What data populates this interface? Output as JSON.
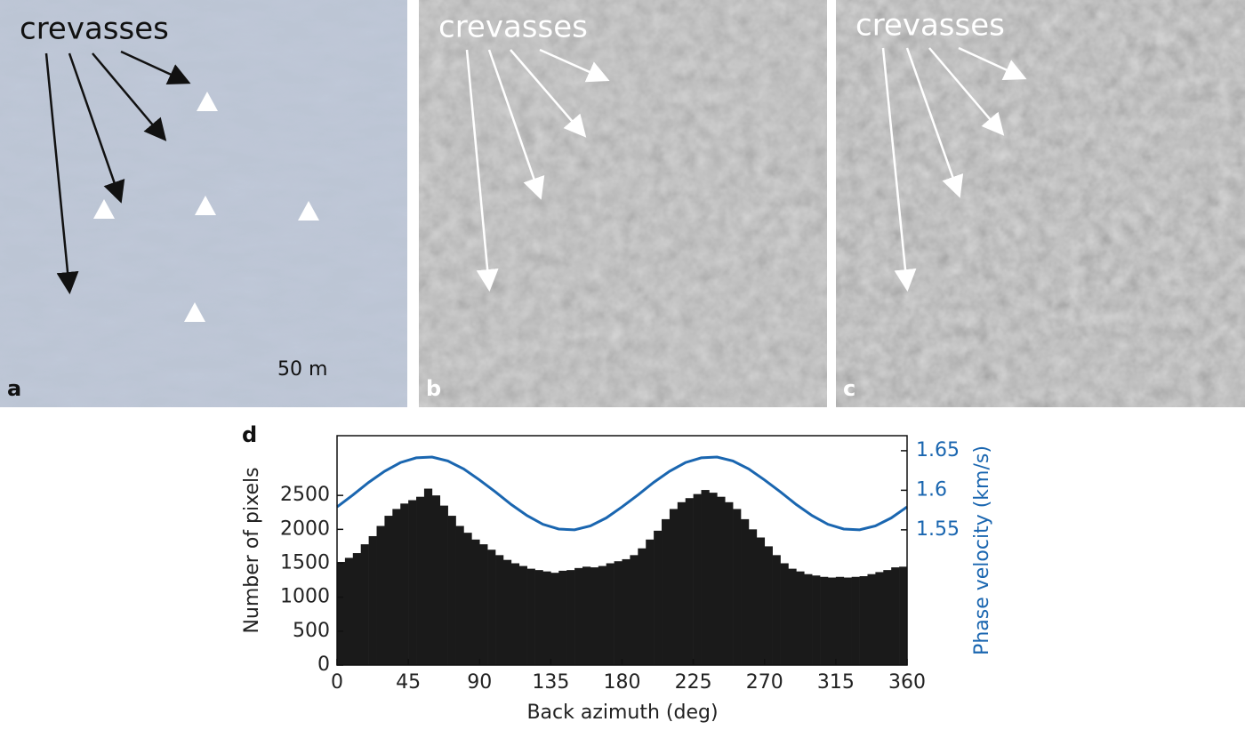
{
  "panels": [
    {
      "label": "a",
      "annotation": "crevasses",
      "scale": "50 m"
    },
    {
      "label": "b",
      "annotation": "crevasses"
    },
    {
      "label": "c",
      "annotation": "crevasses"
    }
  ],
  "chart_data": {
    "type": "histogram",
    "panel_label": "d",
    "xlabel": "Back azimuth (deg)",
    "ylabel": "Number of pixels",
    "y2label": "Phase velocity (km/s)",
    "color": "#1a1a1a",
    "bins": [
      0,
      5,
      10,
      15,
      20,
      25,
      30,
      35,
      40,
      45,
      50,
      55,
      60,
      65,
      70,
      75,
      80,
      85,
      90,
      95,
      100,
      105,
      110,
      115,
      120,
      125,
      130,
      135,
      140,
      145,
      150,
      155,
      160,
      165,
      170,
      175,
      180,
      185,
      190,
      195,
      200,
      205,
      210,
      215,
      220,
      225,
      230,
      235,
      240,
      245,
      250,
      255,
      260,
      265,
      270,
      275,
      280,
      285,
      290,
      295,
      300,
      305,
      310,
      315,
      320,
      325,
      330,
      335,
      340,
      345,
      350,
      355,
      360
    ],
    "values": [
      1520,
      1580,
      1650,
      1780,
      1900,
      2050,
      2200,
      2300,
      2380,
      2430,
      2480,
      2600,
      2500,
      2350,
      2200,
      2050,
      1950,
      1850,
      1780,
      1700,
      1620,
      1550,
      1500,
      1460,
      1420,
      1400,
      1380,
      1360,
      1390,
      1400,
      1430,
      1450,
      1440,
      1460,
      1500,
      1530,
      1560,
      1620,
      1720,
      1850,
      1980,
      2150,
      2300,
      2400,
      2460,
      2520,
      2580,
      2540,
      2480,
      2400,
      2300,
      2150,
      2000,
      1880,
      1750,
      1620,
      1500,
      1420,
      1380,
      1340,
      1320,
      1300,
      1290,
      1300,
      1290,
      1300,
      1310,
      1340,
      1370,
      1400,
      1440,
      1450
    ],
    "line": {
      "type": "line",
      "axis": "y2",
      "color": "#1a66b0",
      "x": [
        0,
        10,
        20,
        30,
        40,
        50,
        60,
        70,
        80,
        90,
        100,
        110,
        120,
        130,
        140,
        150,
        160,
        170,
        180,
        190,
        200,
        210,
        220,
        230,
        240,
        250,
        260,
        270,
        280,
        290,
        300,
        310,
        320,
        330,
        340,
        350,
        360
      ],
      "values": [
        1.579,
        1.594,
        1.61,
        1.624,
        1.635,
        1.641,
        1.642,
        1.637,
        1.627,
        1.613,
        1.598,
        1.582,
        1.568,
        1.557,
        1.551,
        1.55,
        1.555,
        1.565,
        1.579,
        1.594,
        1.61,
        1.624,
        1.635,
        1.641,
        1.642,
        1.637,
        1.627,
        1.613,
        1.598,
        1.582,
        1.568,
        1.557,
        1.551,
        1.55,
        1.555,
        1.565,
        1.579
      ]
    },
    "xlim": [
      0,
      360
    ],
    "xticks": [
      0,
      45,
      90,
      135,
      180,
      225,
      270,
      315,
      360
    ],
    "ylim": [
      0,
      3380
    ],
    "yticks": [
      0,
      500,
      1000,
      1500,
      2000,
      2500
    ],
    "y2lim": [
      1.379,
      1.669
    ],
    "y2ticks": [
      1.55,
      1.6,
      1.65
    ]
  }
}
